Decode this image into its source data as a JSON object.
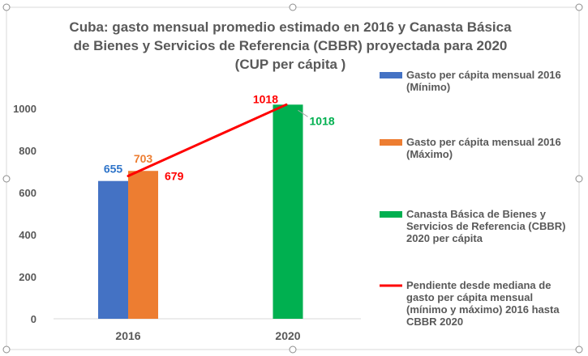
{
  "chart_data": {
    "type": "bar",
    "title_lines": [
      "Cuba: gasto mensual promedio estimado en 2016 y Canasta Básica",
      "de Bienes y Servicios de Referencia (CBBR) proyectada para 2020",
      "(CUP per cápita )"
    ],
    "categories": [
      "2016",
      "2020"
    ],
    "ylim": [
      0,
      1000
    ],
    "yticks": [
      0,
      200,
      400,
      600,
      800,
      1000
    ],
    "grid": false,
    "legend_position": "right",
    "series": [
      {
        "name": "Gasto per cápita mensual 2016 (Mínimo)",
        "legend_lines": [
          "Gasto per cápita mensual 2016",
          "(Mínimo)"
        ],
        "color": "#4472C4",
        "category": "2016",
        "value": 655,
        "label": "655",
        "label_color": "#2E74C9"
      },
      {
        "name": "Gasto per cápita mensual 2016 (Máximo)",
        "legend_lines": [
          "Gasto per cápita mensual 2016",
          "(Máximo)"
        ],
        "color": "#ED7D31",
        "category": "2016",
        "value": 703,
        "label": "703",
        "label_color": "#ED7D31"
      },
      {
        "name": "Canasta Básica de Bienes y Servicios de Referencia (CBBR) 2020 per cápita",
        "legend_lines": [
          "Canasta Básica de Bienes y",
          "Servicios de Referencia (CBBR)",
          "2020 per cápita"
        ],
        "color": "#00B050",
        "category": "2020",
        "value": 1018,
        "label": "1018",
        "label_color": "#00B050"
      }
    ],
    "line_series": {
      "name": "Pendiente desde mediana de gasto per cápita mensual (mínimo y máximo) 2016 hasta CBBR 2020",
      "legend_lines": [
        "Pendiente desde mediana de",
        "gasto per cápita mensual",
        "(mínimo y máximo) 2016 hasta",
        "CBBR 2020"
      ],
      "color": "#FF0000",
      "points": [
        {
          "x": "2016",
          "y": 679,
          "label": "679"
        },
        {
          "x": "2020",
          "y": 1018,
          "label": "1018"
        }
      ]
    }
  }
}
